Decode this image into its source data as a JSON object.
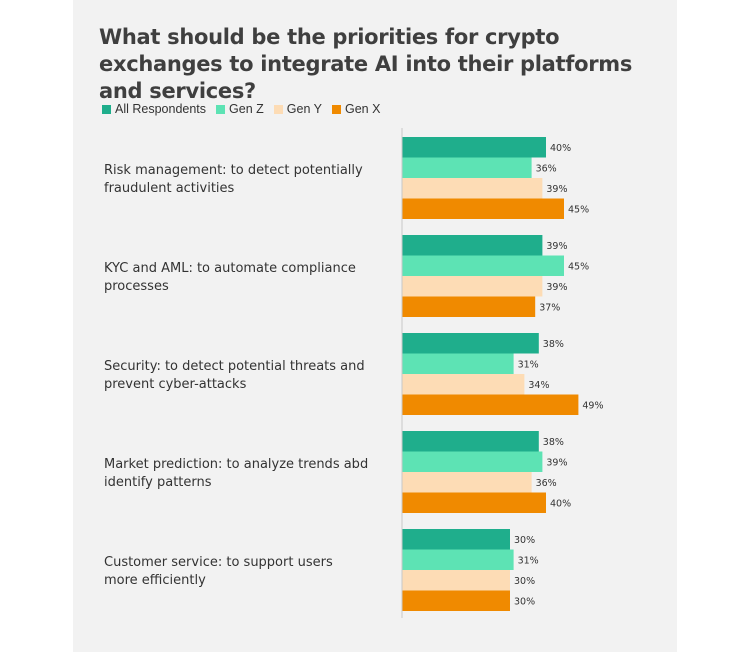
{
  "chart_data": {
    "type": "bar",
    "orientation": "horizontal",
    "title": "What should be the priorities for crypto exchanges to integrate AI into their platforms and services?",
    "legend_position": "top-left",
    "grid": false,
    "xlim": [
      0,
      50
    ],
    "value_suffix": "%",
    "categories": [
      {
        "line1": "Risk management: to detect potentially",
        "line2": "fraudulent activities"
      },
      {
        "line1": "KYC and AML: to automate compliance",
        "line2": "processes"
      },
      {
        "line1": "Security: to detect potential threats and",
        "line2": "prevent cyber-attacks"
      },
      {
        "line1": "Market prediction: to analyze trends abd",
        "line2": "identify patterns"
      },
      {
        "line1": "Customer service:  to support users",
        "line2": "more efficiently"
      }
    ],
    "series": [
      {
        "name": "All Respondents",
        "color": "#1fae8c",
        "values": [
          40,
          39,
          38,
          38,
          30
        ]
      },
      {
        "name": "Gen Z",
        "color": "#5de3b4",
        "values": [
          36,
          45,
          31,
          39,
          31
        ]
      },
      {
        "name": "Gen Y",
        "color": "#fddcb5",
        "values": [
          39,
          39,
          34,
          36,
          30
        ]
      },
      {
        "name": "Gen X",
        "color": "#f08a00",
        "values": [
          45,
          37,
          49,
          40,
          30
        ]
      }
    ]
  }
}
